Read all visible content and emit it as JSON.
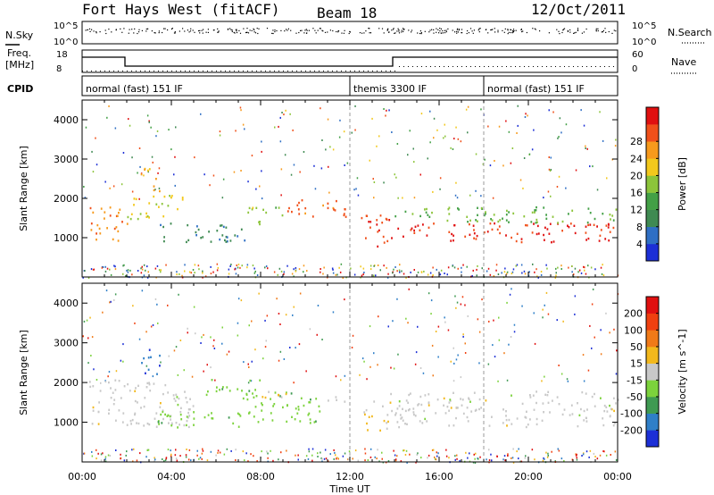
{
  "header": {
    "station": "Fort Hays West (fitACF)",
    "beam": "Beam 18",
    "date": "12/Oct/2011"
  },
  "status_panels": {
    "nsky_label": "N.Sky",
    "nsearch_label": "N.Search",
    "noise_ticks": [
      "10^5",
      "10^0"
    ],
    "noise_ticks_right": [
      "10^5",
      "10^0"
    ],
    "freq_label": "Freq.",
    "freq_unit": "[MHz]",
    "freq_ticks": [
      "18",
      "8"
    ],
    "nave_label": "Nave",
    "nave_ticks": [
      "60",
      "0"
    ],
    "cpid_label": "CPID",
    "cpid_segments": [
      {
        "name": "normal (fast) 151 IF",
        "start": 0,
        "end": 12
      },
      {
        "name": "themis 3300 IF",
        "start": 12,
        "end": 18
      },
      {
        "name": "normal (fast) 151 IF",
        "start": 18,
        "end": 24
      }
    ]
  },
  "chart_data": [
    {
      "type": "heatmap",
      "title": "",
      "xlabel": "",
      "ylabel": "Slant Range [km]",
      "xlim": [
        0,
        24
      ],
      "ylim": [
        0,
        4500
      ],
      "yticks": [
        "1000",
        "2000",
        "3000",
        "4000"
      ],
      "colorbar": {
        "label": "Power [dB]",
        "ticks": [
          "4",
          "8",
          "12",
          "16",
          "20",
          "24",
          "28"
        ],
        "colors": [
          "#1c2fd6",
          "#2f6fc4",
          "#3f8a52",
          "#43a046",
          "#8cc43a",
          "#f2c81c",
          "#f79a1c",
          "#f0501a",
          "#e01010"
        ],
        "range": [
          0,
          32
        ]
      },
      "regions": [
        {
          "t0": 0.3,
          "t1": 2.0,
          "r0": 900,
          "r1": 1800,
          "value": 24
        },
        {
          "t0": 2.0,
          "t1": 4.6,
          "r0": 1500,
          "r1": 2100,
          "value": 18
        },
        {
          "t0": 2.6,
          "t1": 3.5,
          "r0": 2200,
          "r1": 2800,
          "value": 22
        },
        {
          "t0": 3.3,
          "t1": 7.3,
          "r0": 900,
          "r1": 1400,
          "value": 8
        },
        {
          "t0": 7.4,
          "t1": 9.0,
          "r0": 1300,
          "r1": 1800,
          "value": 16
        },
        {
          "t0": 9.0,
          "t1": 11.8,
          "r0": 1500,
          "r1": 2000,
          "value": 26
        },
        {
          "t0": 12.3,
          "t1": 13.8,
          "r0": 800,
          "r1": 1600,
          "value": 28
        },
        {
          "t0": 13.8,
          "t1": 24.0,
          "r0": 900,
          "r1": 1400,
          "value": 29
        },
        {
          "t0": 13.8,
          "t1": 24.0,
          "r0": 1400,
          "r1": 1800,
          "value": 14
        }
      ]
    },
    {
      "type": "heatmap",
      "title": "",
      "xlabel": "Time UT",
      "ylabel": "Slant Range [km]",
      "xlim": [
        0,
        24
      ],
      "ylim": [
        0,
        4500
      ],
      "xticks": [
        "00:00",
        "04:00",
        "08:00",
        "12:00",
        "16:00",
        "20:00",
        "00:00"
      ],
      "yticks": [
        "1000",
        "2000",
        "3000",
        "4000"
      ],
      "colorbar": {
        "label": "Velocity [m s^-1]",
        "ticks": [
          "200",
          "100",
          "50",
          "15",
          "-15",
          "-50",
          "-100",
          "-200"
        ],
        "colors": [
          "#1c2fd6",
          "#2f7fc8",
          "#3f9a52",
          "#7cd23c",
          "#c8c8c8",
          "#f2b81c",
          "#f07a18",
          "#f04010",
          "#e01010"
        ],
        "range": [
          -250,
          250
        ]
      },
      "regions": [
        {
          "t0": 0.3,
          "t1": 5.0,
          "r0": 900,
          "r1": 2100,
          "value": 0
        },
        {
          "t0": 2.6,
          "t1": 3.5,
          "r0": 2200,
          "r1": 2900,
          "value": -180
        },
        {
          "t0": 3.3,
          "t1": 7.0,
          "r0": 850,
          "r1": 1300,
          "value": -60
        },
        {
          "t0": 5.5,
          "t1": 8.0,
          "r0": 1700,
          "r1": 2100,
          "value": -60
        },
        {
          "t0": 7.0,
          "t1": 10.8,
          "r0": 1000,
          "r1": 1800,
          "value": -60
        },
        {
          "t0": 8.0,
          "t1": 9.5,
          "r0": 1500,
          "r1": 1800,
          "value": 40
        },
        {
          "t0": 10.8,
          "t1": 12.0,
          "r0": 1500,
          "r1": 1700,
          "value": 0
        },
        {
          "t0": 12.6,
          "t1": 13.8,
          "r0": 800,
          "r1": 1600,
          "value": 30
        },
        {
          "t0": 13.8,
          "t1": 24.0,
          "r0": 900,
          "r1": 1800,
          "value": 0
        }
      ]
    }
  ]
}
